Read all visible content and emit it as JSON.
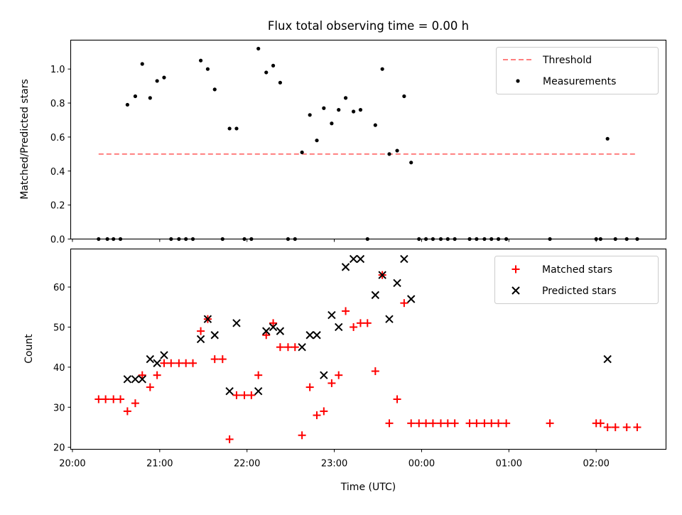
{
  "chart_data": [
    {
      "type": "scatter",
      "title": "Flux total observing time = 0.00 h",
      "xlabel": "",
      "ylabel": "Matched/Predicted stars",
      "ylim": [
        0,
        1.17
      ],
      "xlim_hours": [
        19.98,
        26.8
      ],
      "yticks": [
        "0.0",
        "0.2",
        "0.4",
        "0.6",
        "0.8",
        "1.0"
      ],
      "legend_position": "upper right",
      "legend": {
        "threshold": "Threshold",
        "measurements": "Measurements"
      },
      "colors": {
        "threshold": "#ff7f7f",
        "measurements": "#000000"
      },
      "threshold": {
        "value": 0.5,
        "x_start": 20.3,
        "x_end": 26.45
      },
      "measurements": [
        [
          20.3,
          0
        ],
        [
          20.4,
          0
        ],
        [
          20.47,
          0
        ],
        [
          20.55,
          0
        ],
        [
          20.63,
          0.79
        ],
        [
          20.72,
          0.84
        ],
        [
          20.8,
          1.03
        ],
        [
          20.89,
          0.83
        ],
        [
          20.97,
          0.93
        ],
        [
          21.05,
          0.95
        ],
        [
          21.13,
          0
        ],
        [
          21.22,
          0
        ],
        [
          21.3,
          0
        ],
        [
          21.38,
          0
        ],
        [
          21.47,
          1.05
        ],
        [
          21.55,
          1.0
        ],
        [
          21.63,
          0.88
        ],
        [
          21.72,
          0
        ],
        [
          21.8,
          0.65
        ],
        [
          21.88,
          0.65
        ],
        [
          21.97,
          0
        ],
        [
          22.05,
          0
        ],
        [
          22.13,
          1.12
        ],
        [
          22.22,
          0.98
        ],
        [
          22.3,
          1.02
        ],
        [
          22.38,
          0.92
        ],
        [
          22.47,
          0
        ],
        [
          22.55,
          0
        ],
        [
          22.63,
          0.51
        ],
        [
          22.72,
          0.73
        ],
        [
          22.8,
          0.58
        ],
        [
          22.88,
          0.77
        ],
        [
          22.97,
          0.68
        ],
        [
          23.05,
          0.76
        ],
        [
          23.13,
          0.83
        ],
        [
          23.22,
          0.75
        ],
        [
          23.3,
          0.76
        ],
        [
          23.38,
          0
        ],
        [
          23.47,
          0.67
        ],
        [
          23.55,
          1.0
        ],
        [
          23.63,
          0.5
        ],
        [
          23.72,
          0.52
        ],
        [
          23.8,
          0.84
        ],
        [
          23.88,
          0.45
        ],
        [
          23.97,
          0
        ],
        [
          24.05,
          0
        ],
        [
          24.13,
          0
        ],
        [
          24.22,
          0
        ],
        [
          24.3,
          0
        ],
        [
          24.38,
          0
        ],
        [
          24.55,
          0
        ],
        [
          24.63,
          0
        ],
        [
          24.72,
          0
        ],
        [
          24.8,
          0
        ],
        [
          24.88,
          0
        ],
        [
          24.97,
          0
        ],
        [
          25.47,
          0
        ],
        [
          26.0,
          0
        ],
        [
          26.05,
          0
        ],
        [
          26.13,
          0.59
        ],
        [
          26.22,
          0
        ],
        [
          26.35,
          0
        ],
        [
          26.47,
          0
        ]
      ]
    },
    {
      "type": "scatter",
      "title": "",
      "xlabel": "Time (UTC)",
      "ylabel": "Count",
      "ylim": [
        19.5,
        69.5
      ],
      "xlim_hours": [
        19.98,
        26.8
      ],
      "yticks": [
        "20",
        "30",
        "40",
        "50",
        "60"
      ],
      "xticks": [
        "20:00",
        "21:00",
        "22:00",
        "23:00",
        "00:00",
        "01:00",
        "02:00"
      ],
      "legend_position": "upper right",
      "legend": {
        "matched": "Matched stars",
        "predicted": "Predicted stars"
      },
      "colors": {
        "matched": "#ff0000",
        "predicted": "#000000"
      },
      "matched": [
        [
          20.3,
          32
        ],
        [
          20.38,
          32
        ],
        [
          20.47,
          32
        ],
        [
          20.55,
          32
        ],
        [
          20.63,
          29
        ],
        [
          20.72,
          31
        ],
        [
          20.8,
          38
        ],
        [
          20.89,
          35
        ],
        [
          20.97,
          38
        ],
        [
          21.05,
          41
        ],
        [
          21.13,
          41
        ],
        [
          21.22,
          41
        ],
        [
          21.3,
          41
        ],
        [
          21.38,
          41
        ],
        [
          21.47,
          49
        ],
        [
          21.55,
          52
        ],
        [
          21.63,
          42
        ],
        [
          21.72,
          42
        ],
        [
          21.8,
          22
        ],
        [
          21.88,
          33
        ],
        [
          21.97,
          33
        ],
        [
          22.05,
          33
        ],
        [
          22.13,
          38
        ],
        [
          22.22,
          48
        ],
        [
          22.3,
          51
        ],
        [
          22.38,
          45
        ],
        [
          22.47,
          45
        ],
        [
          22.55,
          45
        ],
        [
          22.63,
          23
        ],
        [
          22.72,
          35
        ],
        [
          22.8,
          28
        ],
        [
          22.88,
          29
        ],
        [
          22.97,
          36
        ],
        [
          23.05,
          38
        ],
        [
          23.13,
          54
        ],
        [
          23.22,
          50
        ],
        [
          23.3,
          51
        ],
        [
          23.38,
          51
        ],
        [
          23.47,
          39
        ],
        [
          23.55,
          63
        ],
        [
          23.63,
          26
        ],
        [
          23.72,
          32
        ],
        [
          23.8,
          56
        ],
        [
          23.88,
          26
        ],
        [
          23.97,
          26
        ],
        [
          24.05,
          26
        ],
        [
          24.13,
          26
        ],
        [
          24.22,
          26
        ],
        [
          24.3,
          26
        ],
        [
          24.38,
          26
        ],
        [
          24.55,
          26
        ],
        [
          24.63,
          26
        ],
        [
          24.72,
          26
        ],
        [
          24.8,
          26
        ],
        [
          24.88,
          26
        ],
        [
          24.97,
          26
        ],
        [
          25.47,
          26
        ],
        [
          26.0,
          26
        ],
        [
          26.05,
          26
        ],
        [
          26.13,
          25
        ],
        [
          26.22,
          25
        ],
        [
          26.35,
          25
        ],
        [
          26.47,
          25
        ]
      ],
      "predicted": [
        [
          20.63,
          37
        ],
        [
          20.72,
          37
        ],
        [
          20.8,
          37
        ],
        [
          20.89,
          42
        ],
        [
          20.97,
          41
        ],
        [
          21.05,
          43
        ],
        [
          21.47,
          47
        ],
        [
          21.55,
          52
        ],
        [
          21.63,
          48
        ],
        [
          21.8,
          34
        ],
        [
          21.88,
          51
        ],
        [
          22.13,
          34
        ],
        [
          22.22,
          49
        ],
        [
          22.3,
          50
        ],
        [
          22.38,
          49
        ],
        [
          22.63,
          45
        ],
        [
          22.72,
          48
        ],
        [
          22.8,
          48
        ],
        [
          22.88,
          38
        ],
        [
          22.97,
          53
        ],
        [
          23.05,
          50
        ],
        [
          23.13,
          65
        ],
        [
          23.22,
          67
        ],
        [
          23.3,
          67
        ],
        [
          23.47,
          58
        ],
        [
          23.55,
          63
        ],
        [
          23.63,
          52
        ],
        [
          23.72,
          61
        ],
        [
          23.8,
          67
        ],
        [
          23.88,
          57
        ],
        [
          26.13,
          42
        ]
      ]
    }
  ]
}
